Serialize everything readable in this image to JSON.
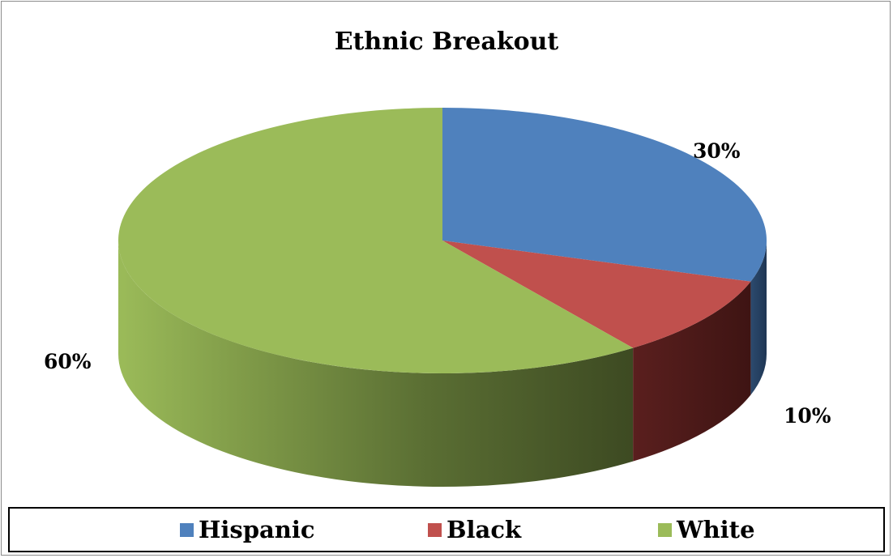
{
  "chart_data": {
    "type": "pie",
    "title": "Ethnic Breakout",
    "categories": [
      "Hispanic",
      "Black",
      "White"
    ],
    "values": [
      30,
      10,
      60
    ],
    "labels": [
      "30%",
      "10%",
      "60%"
    ],
    "colors": [
      "#4f81bd",
      "#c0504d",
      "#9bbb59"
    ],
    "legend": "bottom",
    "three_d": true
  }
}
